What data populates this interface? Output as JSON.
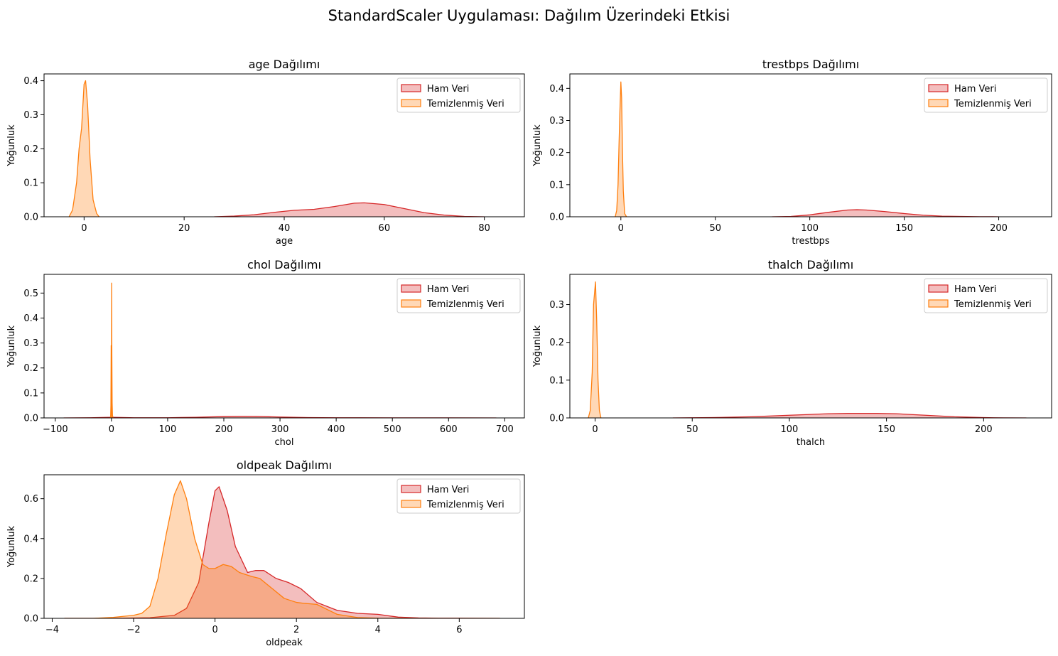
{
  "suptitle": "StandardScaler Uygulaması: Dağılım Üzerindeki Etkisi",
  "colors": {
    "raw": "#d62728",
    "raw_fill": "#f4b6b8",
    "clean": "#ff7f0e",
    "clean_fill": "#ffd7b3"
  },
  "chart_data": [
    {
      "type": "area",
      "title": "age Dağılımı",
      "xlabel": "age",
      "ylabel": "Yoğunluk",
      "xlim": [
        -8,
        88
      ],
      "ylim": [
        0,
        0.42
      ],
      "xticks": [
        0,
        20,
        40,
        60,
        80
      ],
      "yticks": [
        0.0,
        0.1,
        0.2,
        0.3,
        0.4
      ],
      "ytick_decimals": 1,
      "legend": {
        "position": "top-right",
        "entries": [
          "Ham Veri",
          "Temizlenmiş Veri"
        ]
      },
      "series": [
        {
          "name": "Ham Veri",
          "x": [
            26,
            30,
            34,
            38,
            42,
            46,
            50,
            54,
            56,
            60,
            64,
            68,
            72,
            76,
            80
          ],
          "y": [
            0.0,
            0.002,
            0.006,
            0.013,
            0.019,
            0.022,
            0.03,
            0.04,
            0.041,
            0.036,
            0.024,
            0.012,
            0.005,
            0.001,
            0.0
          ]
        },
        {
          "name": "Temizlenmiş Veri",
          "x": [
            -3,
            -2.3,
            -1.5,
            -1,
            -0.5,
            0,
            0.3,
            0.7,
            1.2,
            1.8,
            2.5,
            3
          ],
          "y": [
            0.0,
            0.02,
            0.1,
            0.2,
            0.26,
            0.39,
            0.4,
            0.33,
            0.17,
            0.05,
            0.01,
            0.0
          ]
        }
      ]
    },
    {
      "type": "area",
      "title": "trestbps Dağılımı",
      "xlabel": "trestbps",
      "ylabel": "Yoğunluk",
      "xlim": [
        -27,
        228
      ],
      "ylim": [
        0,
        0.445
      ],
      "xticks": [
        0,
        50,
        100,
        150,
        200
      ],
      "yticks": [
        0.0,
        0.1,
        0.2,
        0.3,
        0.4
      ],
      "ytick_decimals": 1,
      "legend": {
        "position": "top-right",
        "entries": [
          "Ham Veri",
          "Temizlenmiş Veri"
        ]
      },
      "series": [
        {
          "name": "Ham Veri",
          "x": [
            80,
            90,
            100,
            110,
            120,
            125,
            130,
            140,
            150,
            160,
            170,
            180,
            190,
            200
          ],
          "y": [
            0.0,
            0.001,
            0.006,
            0.014,
            0.021,
            0.022,
            0.021,
            0.016,
            0.01,
            0.005,
            0.002,
            0.001,
            0.0003,
            0.0
          ]
        },
        {
          "name": "Temizlenmiş Veri",
          "x": [
            -3,
            -2.2,
            -1.5,
            -1,
            -0.5,
            0,
            0.4,
            0.8,
            1.3,
            2,
            3
          ],
          "y": [
            0.0,
            0.02,
            0.1,
            0.22,
            0.33,
            0.42,
            0.37,
            0.22,
            0.08,
            0.01,
            0.0
          ]
        }
      ]
    },
    {
      "type": "area",
      "title": "chol Dağılımı",
      "xlabel": "chol",
      "ylabel": "Yoğunluk",
      "xlim": [
        -120,
        735
      ],
      "ylim": [
        0,
        0.575
      ],
      "xticks": [
        -100,
        0,
        100,
        200,
        300,
        400,
        500,
        600,
        700
      ],
      "yticks": [
        0.0,
        0.1,
        0.2,
        0.3,
        0.4,
        0.5
      ],
      "ytick_decimals": 1,
      "legend": {
        "position": "top-right",
        "entries": [
          "Ham Veri",
          "Temizlenmiş Veri"
        ]
      },
      "series": [
        {
          "name": "Ham Veri",
          "x": [
            -85,
            -40,
            -10,
            0,
            10,
            40,
            100,
            150,
            200,
            230,
            260,
            300,
            350,
            400,
            500,
            600,
            685
          ],
          "y": [
            0.0,
            0.0005,
            0.002,
            0.0025,
            0.002,
            0.0008,
            0.0008,
            0.0025,
            0.0055,
            0.0065,
            0.006,
            0.0035,
            0.0015,
            0.0008,
            0.0004,
            0.0002,
            0.0
          ]
        },
        {
          "name": "Temizlenmiş Veri",
          "x": [
            -3,
            -1.5,
            -1,
            -0.5,
            0,
            0.3,
            0.7,
            1.2,
            1.8,
            3
          ],
          "y": [
            0.0,
            0.0,
            0.05,
            0.29,
            0.0,
            0.54,
            0.25,
            0.06,
            0.01,
            0.0
          ]
        }
      ]
    },
    {
      "type": "area",
      "title": "thalch Dağılımı",
      "xlabel": "thalch",
      "ylabel": "Yoğunluk",
      "xlim": [
        -13,
        235
      ],
      "ylim": [
        0,
        0.38
      ],
      "xticks": [
        0,
        50,
        100,
        150,
        200
      ],
      "yticks": [
        0.0,
        0.1,
        0.2,
        0.3
      ],
      "ytick_decimals": 1,
      "legend": {
        "position": "top-right",
        "entries": [
          "Ham Veri",
          "Temizlenmiş Veri"
        ]
      },
      "series": [
        {
          "name": "Ham Veri",
          "x": [
            40,
            60,
            80,
            100,
            120,
            130,
            145,
            155,
            170,
            185,
            200,
            210,
            222
          ],
          "y": [
            0.0,
            0.0008,
            0.003,
            0.007,
            0.011,
            0.012,
            0.012,
            0.011,
            0.007,
            0.003,
            0.0008,
            0.0002,
            0.0
          ]
        },
        {
          "name": "Temizlenmiş Veri",
          "x": [
            -3.5,
            -2.5,
            -1.5,
            -0.8,
            -0.3,
            0.2,
            0.8,
            1.5,
            2.2,
            3
          ],
          "y": [
            0.0,
            0.02,
            0.12,
            0.3,
            0.33,
            0.36,
            0.26,
            0.1,
            0.02,
            0.0
          ]
        }
      ]
    },
    {
      "type": "area",
      "title": "oldpeak Dağılımı",
      "xlabel": "oldpeak",
      "ylabel": "Yoğunluk",
      "xlim": [
        -4.2,
        7.6
      ],
      "ylim": [
        0,
        0.72
      ],
      "xticks": [
        -4,
        -2,
        0,
        2,
        4,
        6
      ],
      "yticks": [
        0.0,
        0.2,
        0.4,
        0.6
      ],
      "ytick_decimals": 1,
      "legend": {
        "position": "top-right",
        "entries": [
          "Ham Veri",
          "Temizlenmiş Veri"
        ]
      },
      "series": [
        {
          "name": "Ham Veri",
          "x": [
            -3.7,
            -2.6,
            -1.6,
            -1.0,
            -0.7,
            -0.4,
            -0.15,
            0.0,
            0.1,
            0.3,
            0.5,
            0.8,
            1.0,
            1.2,
            1.5,
            1.8,
            2.1,
            2.5,
            3.0,
            3.5,
            4.0,
            4.5,
            5.0,
            5.5,
            6.0,
            6.5,
            7.0
          ],
          "y": [
            0.0,
            0.0,
            0.003,
            0.015,
            0.05,
            0.18,
            0.48,
            0.64,
            0.66,
            0.54,
            0.36,
            0.23,
            0.24,
            0.24,
            0.2,
            0.18,
            0.15,
            0.08,
            0.04,
            0.025,
            0.02,
            0.006,
            0.002,
            0.001,
            0.001,
            0.0005,
            0.0
          ]
        },
        {
          "name": "Temizlenmiş Veri",
          "x": [
            -3.7,
            -3.0,
            -2.5,
            -2.0,
            -1.8,
            -1.6,
            -1.4,
            -1.2,
            -1.0,
            -0.85,
            -0.7,
            -0.5,
            -0.3,
            -0.15,
            0.0,
            0.2,
            0.4,
            0.6,
            0.9,
            1.1,
            1.4,
            1.7,
            2.0,
            2.2,
            2.5,
            2.8,
            3.0,
            3.5,
            4.0,
            5.0,
            6.0,
            7.0
          ],
          "y": [
            0.0,
            0.0,
            0.005,
            0.015,
            0.025,
            0.06,
            0.2,
            0.42,
            0.62,
            0.69,
            0.6,
            0.4,
            0.27,
            0.25,
            0.25,
            0.27,
            0.26,
            0.23,
            0.21,
            0.2,
            0.15,
            0.1,
            0.08,
            0.075,
            0.07,
            0.04,
            0.02,
            0.004,
            0.001,
            0.0,
            0.0,
            0.0
          ]
        }
      ]
    }
  ]
}
